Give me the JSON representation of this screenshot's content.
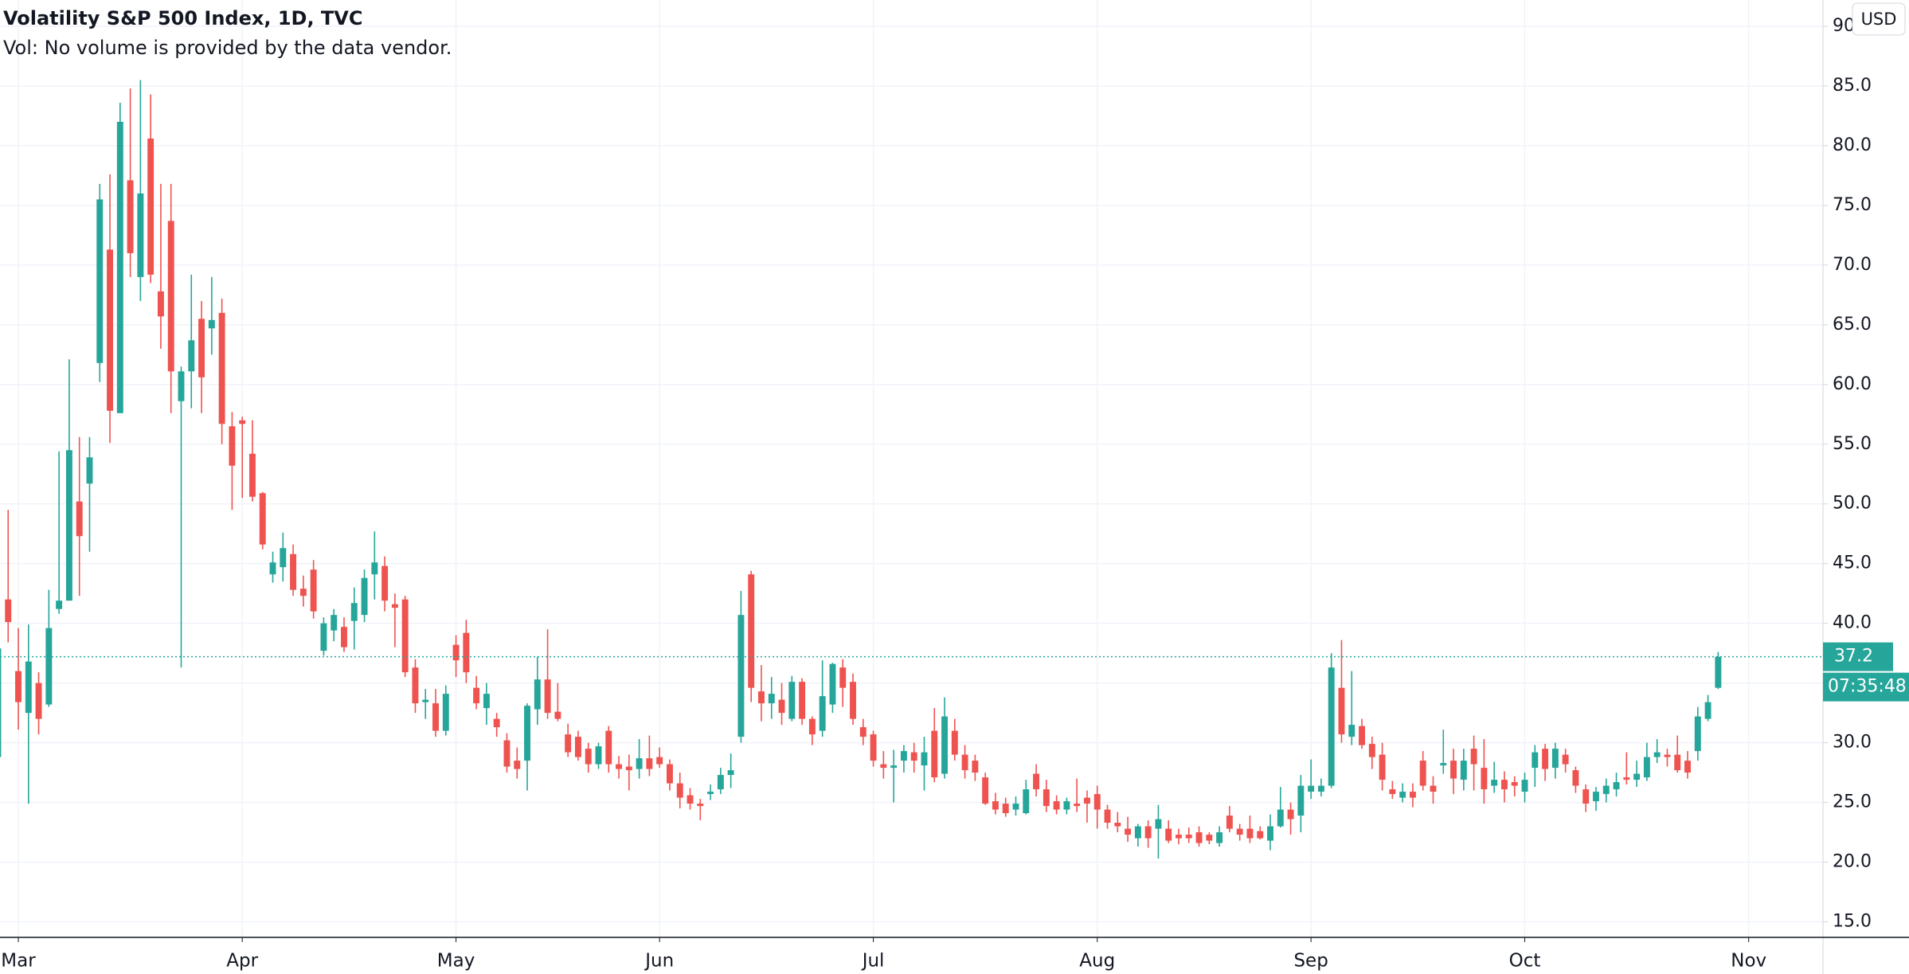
{
  "chart_data": {
    "type": "candlestick",
    "title": "Volatility S&P 500 Index, 1D, TVC",
    "volume_note": "Vol: No volume is provided by the data vendor.",
    "currency": "USD",
    "countdown": "07:35:48",
    "up_color": "#26a69a",
    "down_color": "#ef5350",
    "grid": true,
    "xlim": [
      0.2,
      179.3
    ],
    "xticks": [
      {
        "value": 2,
        "label": "Mar"
      },
      {
        "value": 24,
        "label": "Apr"
      },
      {
        "value": 45,
        "label": "May"
      },
      {
        "value": 65,
        "label": "Jun"
      },
      {
        "value": 86,
        "label": "Jul"
      },
      {
        "value": 108,
        "label": "Aug"
      },
      {
        "value": 129,
        "label": "Sep"
      },
      {
        "value": 150,
        "label": "Oct"
      },
      {
        "value": 172,
        "label": "Nov"
      }
    ],
    "ylim": [
      13.7,
      92.2
    ],
    "yticks": [
      {
        "value": 15,
        "label": "15.0"
      },
      {
        "value": 20,
        "label": "20.0"
      },
      {
        "value": 25,
        "label": "25.0"
      },
      {
        "value": 30,
        "label": "30.0"
      },
      {
        "value": 35,
        "label": "35.0"
      },
      {
        "value": 40,
        "label": "40.0"
      },
      {
        "value": 45,
        "label": "45.0"
      },
      {
        "value": 50,
        "label": "50.0"
      },
      {
        "value": 55,
        "label": "55.0"
      },
      {
        "value": 60,
        "label": "60.0"
      },
      {
        "value": 65,
        "label": "65.0"
      },
      {
        "value": 70,
        "label": "70.0"
      },
      {
        "value": 75,
        "label": "75.0"
      },
      {
        "value": 80,
        "label": "80.0"
      },
      {
        "value": 85,
        "label": "85.0"
      },
      {
        "value": 90,
        "label": "90.0"
      }
    ],
    "ohlc": [
      [
        28.8,
        39.5,
        27.6,
        37.9
      ],
      [
        42.0,
        49.5,
        38.4,
        40.1
      ],
      [
        36.0,
        39.6,
        31.1,
        33.4
      ],
      [
        32.5,
        39.9,
        24.9,
        36.8
      ],
      [
        35.0,
        35.9,
        30.7,
        32.0
      ],
      [
        33.2,
        42.8,
        33.0,
        39.6
      ],
      [
        41.2,
        54.4,
        40.8,
        41.9
      ],
      [
        41.9,
        62.1,
        41.9,
        54.5
      ],
      [
        50.2,
        55.6,
        42.3,
        47.3
      ],
      [
        51.7,
        55.6,
        46.0,
        53.9
      ],
      [
        61.8,
        76.8,
        60.2,
        75.5
      ],
      [
        71.3,
        77.6,
        55.1,
        57.8
      ],
      [
        57.6,
        83.6,
        57.6,
        82.0
      ],
      [
        77.1,
        84.8,
        69.0,
        71.0
      ],
      [
        69.0,
        85.5,
        67.0,
        76.0
      ],
      [
        80.6,
        84.3,
        68.5,
        69.2
      ],
      [
        67.8,
        76.8,
        63.0,
        65.7
      ],
      [
        73.7,
        76.8,
        57.6,
        61.1
      ],
      [
        58.6,
        61.5,
        36.3,
        61.1
      ],
      [
        61.1,
        69.2,
        58.0,
        63.7
      ],
      [
        65.5,
        67.0,
        57.6,
        60.6
      ],
      [
        64.7,
        69.0,
        62.5,
        65.4
      ],
      [
        66.0,
        67.2,
        55.0,
        56.7
      ],
      [
        56.5,
        57.7,
        49.5,
        53.2
      ],
      [
        57.0,
        57.3,
        50.5,
        56.7
      ],
      [
        54.2,
        57.0,
        50.2,
        50.6
      ],
      [
        50.9,
        51.0,
        46.2,
        46.6
      ],
      [
        44.1,
        46.0,
        43.4,
        45.1
      ],
      [
        44.7,
        47.6,
        43.5,
        46.3
      ],
      [
        45.8,
        46.6,
        42.3,
        42.8
      ],
      [
        42.9,
        44.0,
        41.4,
        42.3
      ],
      [
        44.5,
        45.3,
        40.4,
        41.0
      ],
      [
        37.7,
        40.5,
        37.3,
        40.0
      ],
      [
        39.4,
        41.2,
        38.5,
        40.7
      ],
      [
        39.7,
        40.5,
        37.6,
        38.0
      ],
      [
        40.2,
        43.0,
        37.8,
        41.7
      ],
      [
        40.7,
        44.5,
        40.1,
        43.8
      ],
      [
        44.1,
        47.7,
        42.0,
        45.1
      ],
      [
        44.8,
        45.6,
        41.0,
        41.9
      ],
      [
        41.6,
        42.5,
        38.0,
        41.3
      ],
      [
        42.0,
        42.3,
        35.5,
        35.9
      ],
      [
        36.3,
        37.0,
        32.5,
        33.3
      ],
      [
        33.4,
        34.5,
        32.0,
        33.6
      ],
      [
        33.3,
        34.5,
        30.5,
        31.0
      ],
      [
        31.0,
        34.8,
        30.6,
        34.1
      ],
      [
        38.2,
        39.0,
        35.5,
        36.9
      ],
      [
        39.2,
        40.3,
        35.0,
        35.9
      ],
      [
        34.6,
        35.6,
        32.8,
        33.3
      ],
      [
        32.9,
        35.0,
        31.5,
        34.1
      ],
      [
        32.0,
        32.5,
        30.5,
        31.3
      ],
      [
        30.2,
        30.8,
        27.5,
        28.0
      ],
      [
        28.5,
        29.6,
        27.0,
        27.8
      ],
      [
        28.5,
        33.3,
        26.0,
        33.1
      ],
      [
        32.8,
        37.2,
        31.5,
        35.3
      ],
      [
        35.3,
        39.5,
        32.0,
        32.5
      ],
      [
        32.6,
        35.0,
        31.8,
        32.0
      ],
      [
        30.7,
        31.6,
        28.8,
        29.2
      ],
      [
        30.5,
        31.0,
        28.5,
        28.8
      ],
      [
        29.5,
        30.0,
        27.5,
        28.2
      ],
      [
        28.2,
        30.0,
        27.8,
        29.7
      ],
      [
        31.0,
        31.4,
        27.5,
        28.2
      ],
      [
        28.2,
        28.9,
        27.0,
        27.8
      ],
      [
        28.0,
        29.0,
        26.0,
        27.7
      ],
      [
        27.8,
        30.3,
        27.0,
        28.7
      ],
      [
        28.7,
        30.6,
        27.2,
        27.8
      ],
      [
        28.8,
        29.6,
        27.9,
        28.2
      ],
      [
        28.2,
        28.6,
        26.0,
        26.6
      ],
      [
        26.6,
        27.5,
        24.5,
        25.4
      ],
      [
        25.6,
        26.2,
        24.4,
        24.9
      ],
      [
        24.9,
        25.3,
        23.5,
        24.7
      ],
      [
        25.7,
        26.5,
        25.2,
        25.9
      ],
      [
        26.1,
        27.9,
        25.7,
        27.3
      ],
      [
        27.3,
        29.1,
        26.2,
        27.7
      ],
      [
        30.5,
        42.7,
        30.0,
        40.7
      ],
      [
        44.1,
        44.4,
        33.4,
        34.6
      ],
      [
        34.3,
        36.5,
        31.8,
        33.3
      ],
      [
        33.3,
        35.5,
        32.0,
        34.1
      ],
      [
        33.6,
        35.0,
        31.5,
        32.5
      ],
      [
        32.0,
        35.6,
        31.8,
        35.1
      ],
      [
        35.1,
        35.4,
        31.5,
        32.0
      ],
      [
        32.0,
        32.2,
        29.8,
        30.7
      ],
      [
        31.0,
        36.9,
        30.5,
        33.9
      ],
      [
        33.2,
        36.7,
        32.5,
        36.6
      ],
      [
        36.3,
        37.0,
        33.0,
        34.6
      ],
      [
        35.1,
        35.8,
        31.5,
        32.0
      ],
      [
        31.3,
        32.0,
        29.8,
        30.5
      ],
      [
        30.7,
        31.0,
        28.0,
        28.5
      ],
      [
        28.2,
        29.3,
        27.0,
        27.9
      ],
      [
        27.9,
        29.4,
        25.0,
        28.1
      ],
      [
        28.5,
        29.8,
        27.5,
        29.3
      ],
      [
        29.2,
        30.0,
        27.5,
        28.5
      ],
      [
        28.1,
        30.5,
        26.0,
        29.2
      ],
      [
        31.0,
        32.9,
        26.7,
        27.1
      ],
      [
        27.4,
        33.8,
        27.0,
        32.2
      ],
      [
        31.0,
        32.0,
        28.5,
        29.0
      ],
      [
        29.0,
        29.8,
        27.0,
        27.7
      ],
      [
        28.5,
        29.0,
        26.8,
        27.5
      ],
      [
        27.1,
        27.5,
        24.8,
        24.9
      ],
      [
        25.1,
        25.8,
        24.0,
        24.4
      ],
      [
        24.9,
        25.4,
        23.8,
        24.1
      ],
      [
        24.4,
        25.5,
        23.9,
        24.9
      ],
      [
        24.1,
        26.9,
        24.0,
        26.1
      ],
      [
        27.4,
        28.2,
        25.5,
        26.1
      ],
      [
        26.1,
        26.9,
        24.2,
        24.7
      ],
      [
        25.1,
        25.6,
        24.0,
        24.4
      ],
      [
        24.4,
        25.4,
        24.0,
        25.1
      ],
      [
        24.9,
        27.0,
        24.2,
        24.7
      ],
      [
        25.4,
        26.0,
        23.3,
        24.9
      ],
      [
        25.7,
        26.4,
        22.8,
        24.4
      ],
      [
        24.4,
        24.8,
        22.8,
        23.3
      ],
      [
        23.3,
        24.2,
        22.5,
        23.0
      ],
      [
        22.8,
        23.8,
        21.7,
        22.3
      ],
      [
        22.0,
        23.2,
        21.3,
        23.0
      ],
      [
        23.0,
        23.5,
        21.2,
        22.0
      ],
      [
        22.8,
        24.8,
        20.3,
        23.6
      ],
      [
        22.8,
        23.5,
        21.6,
        21.8
      ],
      [
        22.3,
        22.8,
        21.5,
        22.0
      ],
      [
        22.3,
        22.9,
        21.6,
        22.0
      ],
      [
        22.5,
        23.0,
        21.3,
        21.6
      ],
      [
        22.3,
        22.5,
        21.5,
        21.8
      ],
      [
        21.6,
        23.0,
        21.3,
        22.5
      ],
      [
        23.9,
        24.7,
        22.5,
        22.8
      ],
      [
        22.8,
        23.2,
        21.8,
        22.3
      ],
      [
        22.8,
        23.9,
        21.6,
        22.0
      ],
      [
        22.6,
        23.0,
        21.9,
        22.0
      ],
      [
        21.8,
        24.0,
        21.0,
        23.0
      ],
      [
        23.0,
        26.3,
        22.9,
        24.4
      ],
      [
        24.4,
        25.0,
        22.3,
        23.6
      ],
      [
        23.9,
        27.3,
        22.5,
        26.4
      ],
      [
        25.9,
        28.6,
        25.3,
        26.4
      ],
      [
        25.9,
        27.0,
        25.5,
        26.4
      ],
      [
        26.4,
        37.5,
        26.2,
        36.3
      ],
      [
        34.6,
        38.6,
        30.0,
        30.7
      ],
      [
        30.5,
        36.0,
        29.8,
        31.5
      ],
      [
        31.4,
        32.0,
        29.5,
        29.8
      ],
      [
        29.9,
        30.5,
        27.8,
        28.8
      ],
      [
        29.0,
        30.0,
        26.0,
        26.9
      ],
      [
        26.1,
        26.8,
        25.3,
        25.7
      ],
      [
        25.4,
        26.6,
        25.0,
        25.9
      ],
      [
        25.9,
        26.6,
        24.6,
        25.4
      ],
      [
        28.5,
        29.3,
        26.0,
        26.4
      ],
      [
        26.4,
        27.2,
        24.9,
        25.9
      ],
      [
        28.1,
        31.1,
        27.4,
        28.3
      ],
      [
        28.5,
        29.5,
        25.7,
        27.0
      ],
      [
        26.9,
        29.5,
        26.0,
        28.5
      ],
      [
        29.5,
        30.6,
        26.0,
        28.2
      ],
      [
        27.9,
        30.3,
        24.9,
        26.1
      ],
      [
        26.4,
        28.4,
        25.8,
        26.9
      ],
      [
        26.9,
        27.6,
        25.0,
        26.1
      ],
      [
        26.7,
        27.2,
        25.5,
        26.4
      ],
      [
        25.9,
        27.5,
        25.0,
        26.9
      ],
      [
        27.9,
        29.8,
        26.3,
        29.2
      ],
      [
        29.5,
        29.9,
        26.8,
        27.8
      ],
      [
        27.9,
        30.0,
        27.0,
        29.5
      ],
      [
        29.0,
        29.5,
        27.5,
        28.2
      ],
      [
        27.7,
        28.0,
        25.8,
        26.4
      ],
      [
        26.1,
        26.5,
        24.2,
        24.9
      ],
      [
        25.1,
        26.3,
        24.3,
        25.9
      ],
      [
        25.7,
        27.0,
        25.0,
        26.4
      ],
      [
        26.1,
        27.5,
        25.5,
        26.7
      ],
      [
        27.1,
        29.2,
        26.5,
        26.9
      ],
      [
        26.9,
        28.5,
        26.3,
        27.4
      ],
      [
        27.1,
        30.0,
        26.8,
        28.8
      ],
      [
        28.8,
        30.3,
        28.3,
        29.2
      ],
      [
        29.0,
        29.5,
        28.0,
        28.8
      ],
      [
        29.0,
        30.6,
        27.5,
        27.7
      ],
      [
        28.5,
        29.3,
        27.0,
        27.5
      ],
      [
        29.3,
        33.0,
        28.5,
        32.2
      ],
      [
        32.0,
        34.0,
        31.8,
        33.4
      ],
      [
        34.6,
        37.6,
        34.5,
        37.2
      ]
    ]
  }
}
